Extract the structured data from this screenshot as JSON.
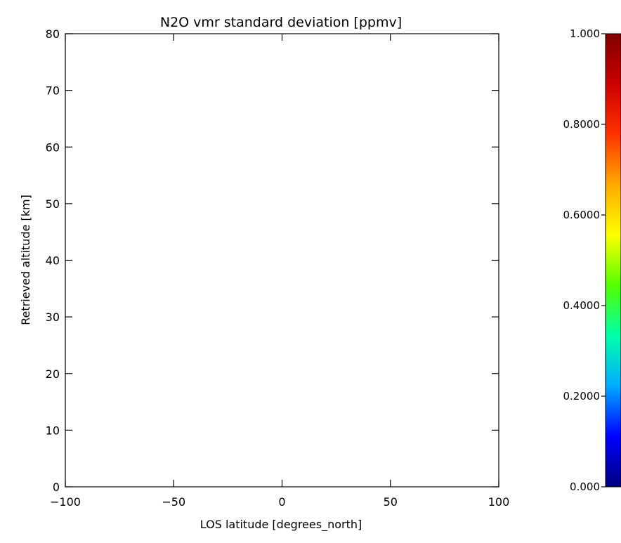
{
  "chart_data": {
    "type": "heatmap",
    "title": "N2O vmr standard deviation [ppmv]",
    "xlabel": "LOS latitude [degrees_north]",
    "ylabel": "Retrieved altitude [km]",
    "xlim": [
      -100,
      100
    ],
    "ylim": [
      0,
      80
    ],
    "x_ticks": [
      -100,
      -50,
      0,
      50,
      100
    ],
    "x_tick_labels": [
      "−100",
      "−50",
      "0",
      "50",
      "100"
    ],
    "y_ticks": [
      0,
      10,
      20,
      30,
      40,
      50,
      60,
      70,
      80
    ],
    "y_tick_labels": [
      "0",
      "10",
      "20",
      "30",
      "40",
      "50",
      "60",
      "70",
      "80"
    ],
    "grid": false,
    "values": [],
    "colorbar": {
      "range": [
        0,
        1
      ],
      "ticks": [
        0,
        0.2,
        0.4,
        0.6,
        0.8,
        1.0
      ],
      "tick_labels": [
        "0.000",
        "0.2000",
        "0.4000",
        "0.6000",
        "0.8000",
        "1.000"
      ],
      "colormap": "rainbow",
      "colors": [
        "#00007f",
        "#0000ff",
        "#00aaff",
        "#00ffaa",
        "#55ff00",
        "#ffff00",
        "#ffaa00",
        "#ff3300",
        "#cc0000",
        "#7f0000"
      ]
    }
  }
}
